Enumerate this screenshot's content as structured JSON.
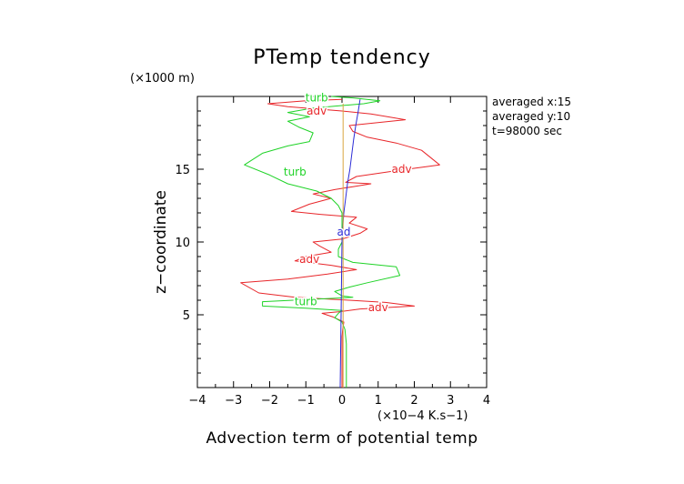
{
  "chart_data": {
    "type": "line",
    "title": "PTemp tendency",
    "xlabel": "Advection term of potential temp",
    "x_unit": "(×10−4 K.s−1)",
    "ylabel": "z−coordinate",
    "y_unit": "(×1000 m)",
    "xlim": [
      -4,
      4
    ],
    "ylim": [
      0,
      20
    ],
    "xticks": [
      -4,
      -3,
      -2,
      -1,
      0,
      1,
      2,
      3,
      4
    ],
    "xtick_labels": [
      "−4",
      "−3",
      "−2",
      "−1",
      "0",
      "1",
      "2",
      "3",
      "4"
    ],
    "yticks": [
      5,
      10,
      15
    ],
    "ytick_labels": [
      "5",
      "10",
      "15"
    ],
    "annotations": [
      "averaged  x:15",
      "averaged  y:10",
      "t=98000 sec"
    ],
    "series": [
      {
        "name": "adv",
        "color": "#e8262a",
        "labels": [
          {
            "text": "adv",
            "x": -0.7,
            "y": 19.0
          },
          {
            "text": "adv",
            "x": 1.65,
            "y": 15.0
          },
          {
            "text": "adv",
            "x": -0.9,
            "y": 8.8
          },
          {
            "text": "adv",
            "x": 1.0,
            "y": 5.5
          }
        ],
        "points": [
          [
            0.0,
            0.0
          ],
          [
            0.0,
            0.5
          ],
          [
            0.0,
            1.0
          ],
          [
            0.0,
            1.5
          ],
          [
            0.0,
            2.0
          ],
          [
            0.0,
            2.5
          ],
          [
            0.0,
            3.0
          ],
          [
            0.0,
            3.5
          ],
          [
            0.02,
            4.0
          ],
          [
            0.05,
            4.5
          ],
          [
            -0.25,
            4.85
          ],
          [
            -0.55,
            5.1
          ],
          [
            -0.1,
            5.2
          ],
          [
            0.5,
            5.4
          ],
          [
            2.0,
            5.6
          ],
          [
            1.2,
            5.85
          ],
          [
            0.2,
            6.0
          ],
          [
            -1.3,
            6.2
          ],
          [
            -2.3,
            6.5
          ],
          [
            -2.8,
            7.2
          ],
          [
            -1.5,
            7.45
          ],
          [
            -0.4,
            7.8
          ],
          [
            0.4,
            8.1
          ],
          [
            -0.3,
            8.4
          ],
          [
            -1.3,
            8.7
          ],
          [
            -1.0,
            9.0
          ],
          [
            -0.3,
            9.3
          ],
          [
            -0.6,
            9.7
          ],
          [
            -0.8,
            10.0
          ],
          [
            0.0,
            10.2
          ],
          [
            0.5,
            10.6
          ],
          [
            0.7,
            10.9
          ],
          [
            0.2,
            11.3
          ],
          [
            0.4,
            11.7
          ],
          [
            -0.6,
            11.9
          ],
          [
            -1.4,
            12.1
          ],
          [
            -0.9,
            12.6
          ],
          [
            -0.3,
            13.0
          ],
          [
            -0.8,
            13.3
          ],
          [
            -0.2,
            13.6
          ],
          [
            0.3,
            13.8
          ],
          [
            0.8,
            14.0
          ],
          [
            0.1,
            14.1
          ],
          [
            0.4,
            14.5
          ],
          [
            1.5,
            14.9
          ],
          [
            2.7,
            15.3
          ],
          [
            2.2,
            16.3
          ],
          [
            1.5,
            16.8
          ],
          [
            0.7,
            17.2
          ],
          [
            0.3,
            17.6
          ],
          [
            0.2,
            18.0
          ],
          [
            1.75,
            18.4
          ],
          [
            0.8,
            18.8
          ],
          [
            0.0,
            19.0
          ],
          [
            -1.5,
            19.3
          ],
          [
            -2.05,
            19.5
          ],
          [
            -1.0,
            19.7
          ],
          [
            0.0,
            19.8
          ]
        ]
      },
      {
        "name": "turb",
        "color": "#1fd327",
        "labels": [
          {
            "text": "turb",
            "x": -0.7,
            "y": 19.9
          },
          {
            "text": "turb",
            "x": -1.3,
            "y": 14.8
          },
          {
            "text": "turb",
            "x": -1.0,
            "y": 5.9
          }
        ],
        "points": [
          [
            0.12,
            0.0
          ],
          [
            0.12,
            0.5
          ],
          [
            0.12,
            1.0
          ],
          [
            0.12,
            1.5
          ],
          [
            0.12,
            2.0
          ],
          [
            0.12,
            2.5
          ],
          [
            0.12,
            3.0
          ],
          [
            0.1,
            3.5
          ],
          [
            0.08,
            4.0
          ],
          [
            0.0,
            4.5
          ],
          [
            -0.2,
            4.8
          ],
          [
            -0.1,
            5.1
          ],
          [
            0.0,
            5.3
          ],
          [
            -1.0,
            5.45
          ],
          [
            -2.2,
            5.6
          ],
          [
            -2.2,
            5.9
          ],
          [
            -0.5,
            6.1
          ],
          [
            0.3,
            6.2
          ],
          [
            0.0,
            6.3
          ],
          [
            -0.2,
            6.6
          ],
          [
            0.2,
            6.9
          ],
          [
            0.7,
            7.2
          ],
          [
            1.6,
            7.7
          ],
          [
            1.5,
            8.3
          ],
          [
            0.3,
            8.6
          ],
          [
            -0.1,
            9.0
          ],
          [
            -0.1,
            9.5
          ],
          [
            0.0,
            10.0
          ],
          [
            0.0,
            10.5
          ],
          [
            0.0,
            11.0
          ],
          [
            0.0,
            11.5
          ],
          [
            0.0,
            12.0
          ],
          [
            -0.1,
            12.5
          ],
          [
            -0.3,
            13.0
          ],
          [
            -0.7,
            13.5
          ],
          [
            -1.5,
            14.0
          ],
          [
            -2.0,
            14.6
          ],
          [
            -2.7,
            15.3
          ],
          [
            -2.2,
            16.1
          ],
          [
            -1.5,
            16.6
          ],
          [
            -0.9,
            16.9
          ],
          [
            -0.8,
            17.5
          ],
          [
            -1.2,
            17.9
          ],
          [
            -1.5,
            18.3
          ],
          [
            -0.9,
            18.6
          ],
          [
            -1.5,
            18.9
          ],
          [
            -0.8,
            19.2
          ],
          [
            0.6,
            19.5
          ],
          [
            1.05,
            19.7
          ],
          [
            0.3,
            19.9
          ],
          [
            -0.3,
            20.0
          ]
        ]
      },
      {
        "name": "",
        "color": "#2b2bd6",
        "labels": [
          {
            "text": "ad",
            "x": 0.05,
            "y": 10.7
          }
        ],
        "points": [
          [
            -0.05,
            0.0
          ],
          [
            -0.04,
            2.0
          ],
          [
            -0.03,
            4.0
          ],
          [
            -0.02,
            6.0
          ],
          [
            -0.01,
            8.0
          ],
          [
            0.0,
            10.0
          ],
          [
            0.02,
            11.0
          ],
          [
            0.05,
            12.0
          ],
          [
            0.1,
            13.0
          ],
          [
            0.15,
            14.0
          ],
          [
            0.22,
            15.0
          ],
          [
            0.27,
            16.0
          ],
          [
            0.32,
            17.0
          ],
          [
            0.38,
            18.0
          ],
          [
            0.45,
            19.0
          ],
          [
            0.5,
            19.8
          ]
        ]
      },
      {
        "name": "",
        "color": "#d9a640",
        "labels": [],
        "points": [
          [
            0.03,
            0.0
          ],
          [
            0.03,
            5.0
          ],
          [
            0.03,
            10.0
          ],
          [
            0.03,
            15.0
          ],
          [
            0.03,
            19.5
          ]
        ]
      }
    ]
  }
}
